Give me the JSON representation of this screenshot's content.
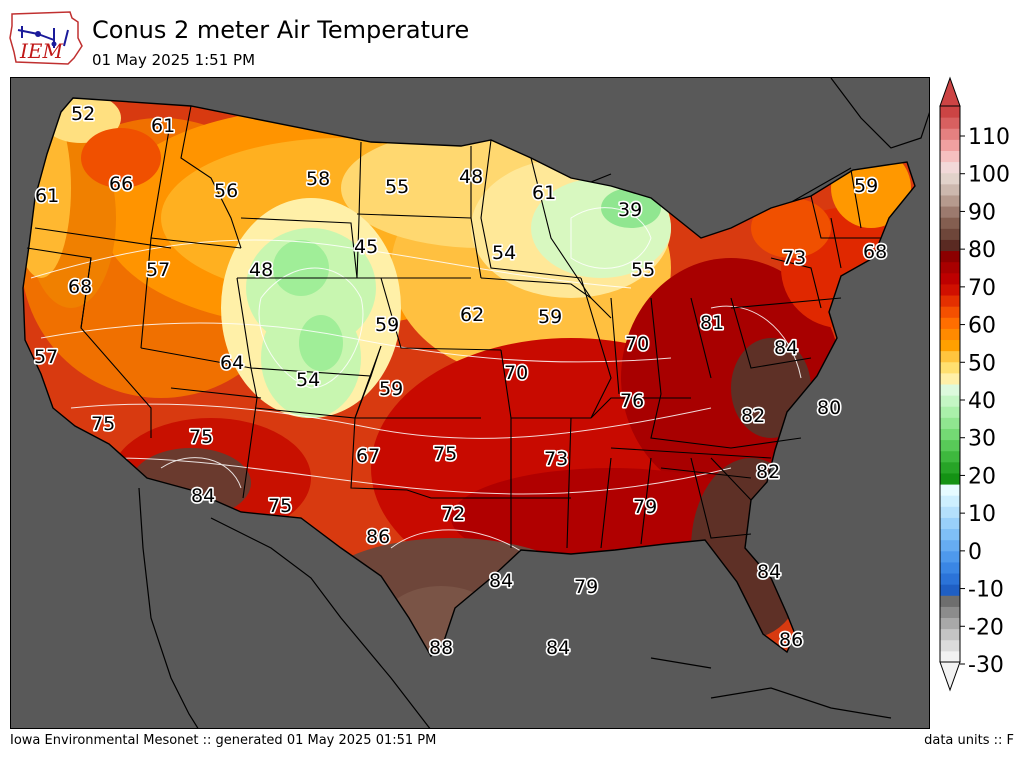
{
  "header": {
    "logo_text": "IEM",
    "title": "Conus 2 meter Air Temperature",
    "subtitle": "01 May 2025 1:51 PM"
  },
  "colors": {
    "ocean": "#595959",
    "land_under": "#d83a10"
  },
  "map": {
    "labels": [
      {
        "text": "52"
      },
      {
        "text": "61"
      },
      {
        "text": "66"
      },
      {
        "text": "61"
      },
      {
        "text": "56"
      },
      {
        "text": "58"
      },
      {
        "text": "55"
      },
      {
        "text": "48"
      },
      {
        "text": "61"
      },
      {
        "text": "39"
      },
      {
        "text": "59"
      },
      {
        "text": "45"
      },
      {
        "text": "48"
      },
      {
        "text": "57"
      },
      {
        "text": "68"
      },
      {
        "text": "54"
      },
      {
        "text": "55"
      },
      {
        "text": "73"
      },
      {
        "text": "68"
      },
      {
        "text": "59"
      },
      {
        "text": "62"
      },
      {
        "text": "59"
      },
      {
        "text": "81"
      },
      {
        "text": "57"
      },
      {
        "text": "64"
      },
      {
        "text": "54"
      },
      {
        "text": "59"
      },
      {
        "text": "70"
      },
      {
        "text": "70"
      },
      {
        "text": "84"
      },
      {
        "text": "76"
      },
      {
        "text": "80"
      },
      {
        "text": "75"
      },
      {
        "text": "75"
      },
      {
        "text": "82"
      },
      {
        "text": "67"
      },
      {
        "text": "75"
      },
      {
        "text": "73"
      },
      {
        "text": "82"
      },
      {
        "text": "84"
      },
      {
        "text": "75"
      },
      {
        "text": "72"
      },
      {
        "text": "79"
      },
      {
        "text": "86"
      },
      {
        "text": "84"
      },
      {
        "text": "79"
      },
      {
        "text": "84"
      },
      {
        "text": "86"
      },
      {
        "text": "88"
      },
      {
        "text": "84"
      }
    ]
  },
  "colorbar": {
    "ticks": [
      "110",
      "100",
      "90",
      "80",
      "70",
      "60",
      "50",
      "40",
      "30",
      "20",
      "10",
      "0",
      "-10",
      "-20",
      "-30"
    ],
    "colors": [
      "#f2f2f2",
      "#dcdcdc",
      "#c4c4c4",
      "#a8a8a8",
      "#8c8c8c",
      "#6e6e6e",
      "#1f5fc4",
      "#2b73d8",
      "#3a86e4",
      "#4e99ec",
      "#66acf2",
      "#7fbff6",
      "#99d0fa",
      "#b4e0fc",
      "#cdeffe",
      "#e6fbff",
      "#149214",
      "#27a427",
      "#3eb83e",
      "#58ca58",
      "#74da74",
      "#90e690",
      "#aaf0aa",
      "#c4f6c4",
      "#ddfadd",
      "#fff0a8",
      "#ffe070",
      "#ffc53e",
      "#ffa000",
      "#ff8a00",
      "#ff6e00",
      "#f45000",
      "#e43000",
      "#d01000",
      "#be0000",
      "#a80000",
      "#8c0000",
      "#5a2a22",
      "#6e463a",
      "#845e50",
      "#9c7a6e",
      "#b69a8e",
      "#cdb8ae",
      "#e2d2ca",
      "#f2d8d8",
      "#f5c0c0",
      "#f0a0a0",
      "#e58080",
      "#d86060",
      "#cc4444"
    ]
  },
  "footer": {
    "left": "Iowa Environmental Mesonet :: generated 01 May 2025 01:51 PM",
    "right": "data units :: F"
  }
}
